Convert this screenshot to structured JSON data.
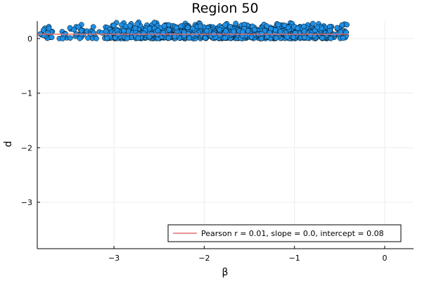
{
  "chart_data": {
    "type": "scatter",
    "title": "Region 50",
    "xlabel": "β",
    "ylabel": "d",
    "xlim": [
      -3.85,
      0.32
    ],
    "ylim": [
      -3.85,
      0.32
    ],
    "xticks": [
      -3,
      -2,
      -1,
      0
    ],
    "xtick_labels": [
      "−3",
      "−2",
      "−1",
      "0"
    ],
    "yticks": [
      0,
      -1,
      -2,
      -3
    ],
    "ytick_labels": [
      "0",
      "−1",
      "−2",
      "−3"
    ],
    "grid": true,
    "legend_position": "bottom-right",
    "point_color": "#1e90e6",
    "line_color": "#e26f6f",
    "scatter_points": {
      "x_range": [
        -3.85,
        -0.4
      ],
      "dense_x_range": [
        -3.1,
        -0.6
      ],
      "y_range": [
        0.0,
        0.3
      ],
      "count": 1100
    },
    "fit_line": {
      "legend": "Pearson r = 0.01, slope = 0.0, intercept = 0.08",
      "slope": 0.0,
      "intercept": 0.08,
      "x_range": [
        -3.85,
        -0.4
      ]
    }
  }
}
